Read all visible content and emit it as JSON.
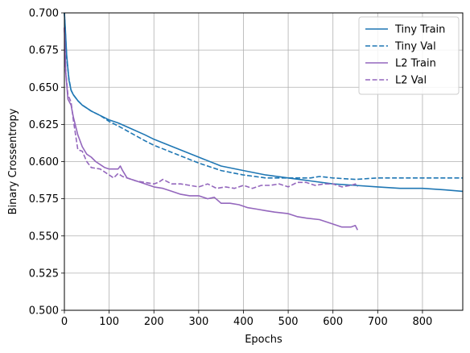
{
  "chart_data": {
    "type": "line",
    "title": "",
    "xlabel": "Epochs",
    "ylabel": "Binary Crossentropy",
    "xlim": [
      0,
      890
    ],
    "ylim": [
      0.5,
      0.7
    ],
    "xticks": [
      0,
      100,
      200,
      300,
      400,
      500,
      600,
      700,
      800
    ],
    "yticks": [
      0.5,
      0.525,
      0.55,
      0.575,
      0.6,
      0.625,
      0.65,
      0.675,
      0.7
    ],
    "grid": true,
    "legend_position": "top-right",
    "series": [
      {
        "name": "Tiny Train",
        "color": "#1f77b4",
        "style": "solid",
        "x": [
          0,
          2,
          5,
          10,
          15,
          20,
          30,
          40,
          50,
          60,
          80,
          100,
          120,
          150,
          180,
          200,
          250,
          300,
          350,
          400,
          450,
          500,
          550,
          600,
          650,
          700,
          750,
          800,
          850,
          890
        ],
        "y": [
          0.7,
          0.69,
          0.672,
          0.655,
          0.648,
          0.645,
          0.641,
          0.638,
          0.636,
          0.634,
          0.631,
          0.628,
          0.626,
          0.622,
          0.618,
          0.615,
          0.609,
          0.603,
          0.597,
          0.594,
          0.591,
          0.589,
          0.587,
          0.585,
          0.584,
          0.583,
          0.582,
          0.582,
          0.581,
          0.58
        ]
      },
      {
        "name": "Tiny Val",
        "color": "#1f77b4",
        "style": "dashed",
        "x": [
          0,
          2,
          5,
          10,
          15,
          20,
          30,
          40,
          50,
          60,
          80,
          100,
          120,
          150,
          180,
          200,
          250,
          300,
          350,
          400,
          450,
          500,
          550,
          570,
          600,
          650,
          700,
          750,
          800,
          850,
          890
        ],
        "y": [
          0.7,
          0.688,
          0.67,
          0.656,
          0.648,
          0.645,
          0.641,
          0.638,
          0.636,
          0.634,
          0.631,
          0.627,
          0.624,
          0.619,
          0.614,
          0.611,
          0.605,
          0.599,
          0.594,
          0.591,
          0.589,
          0.589,
          0.589,
          0.59,
          0.589,
          0.588,
          0.589,
          0.589,
          0.589,
          0.589,
          0.589
        ]
      },
      {
        "name": "L2 Train",
        "color": "#9467bd",
        "style": "solid",
        "x": [
          0,
          3,
          8,
          15,
          20,
          30,
          40,
          50,
          60,
          70,
          80,
          90,
          100,
          110,
          120,
          125,
          130,
          140,
          150,
          170,
          190,
          200,
          220,
          240,
          260,
          280,
          300,
          320,
          335,
          350,
          370,
          390,
          410,
          430,
          450,
          470,
          500,
          520,
          540,
          570,
          600,
          620,
          640,
          650,
          655
        ],
        "y": [
          0.69,
          0.66,
          0.642,
          0.638,
          0.63,
          0.618,
          0.61,
          0.605,
          0.603,
          0.6,
          0.598,
          0.596,
          0.595,
          0.595,
          0.595,
          0.597,
          0.594,
          0.589,
          0.588,
          0.586,
          0.584,
          0.583,
          0.582,
          0.58,
          0.578,
          0.577,
          0.577,
          0.575,
          0.576,
          0.572,
          0.572,
          0.571,
          0.569,
          0.568,
          0.567,
          0.566,
          0.565,
          0.563,
          0.562,
          0.561,
          0.558,
          0.556,
          0.556,
          0.557,
          0.554
        ]
      },
      {
        "name": "L2 Val",
        "color": "#9467bd",
        "style": "dashed",
        "x": [
          0,
          3,
          8,
          15,
          20,
          30,
          40,
          50,
          60,
          80,
          100,
          110,
          120,
          130,
          140,
          160,
          180,
          200,
          210,
          220,
          240,
          260,
          280,
          300,
          320,
          340,
          360,
          380,
          400,
          420,
          440,
          460,
          480,
          500,
          520,
          540,
          560,
          580,
          600,
          620,
          640,
          650,
          655
        ],
        "y": [
          0.69,
          0.66,
          0.645,
          0.64,
          0.628,
          0.608,
          0.607,
          0.6,
          0.596,
          0.595,
          0.591,
          0.589,
          0.592,
          0.59,
          0.589,
          0.587,
          0.586,
          0.585,
          0.586,
          0.588,
          0.585,
          0.585,
          0.584,
          0.583,
          0.585,
          0.582,
          0.583,
          0.582,
          0.584,
          0.582,
          0.584,
          0.584,
          0.585,
          0.583,
          0.586,
          0.586,
          0.584,
          0.585,
          0.585,
          0.583,
          0.584,
          0.585,
          0.583
        ]
      }
    ]
  }
}
